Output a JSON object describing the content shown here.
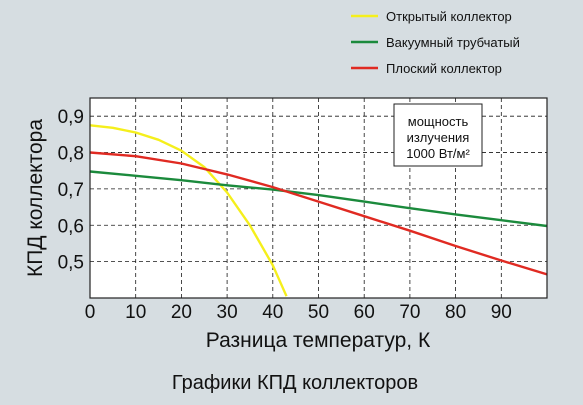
{
  "chart_data": {
    "type": "line",
    "title": "Графики КПД коллекторов",
    "xlabel": "Разница температур, К",
    "ylabel": "КПД коллектора",
    "xlim": [
      0,
      100
    ],
    "ylim": [
      0.4,
      0.95
    ],
    "x_ticks": [
      0,
      10,
      20,
      30,
      40,
      50,
      60,
      70,
      80,
      90
    ],
    "x_tick_labels": [
      "0",
      "10",
      "20",
      "30",
      "40",
      "50",
      "60",
      "70",
      "80",
      "90"
    ],
    "y_ticks": [
      0.5,
      0.6,
      0.7,
      0.8,
      0.9
    ],
    "y_tick_labels": [
      "0,5",
      "0,6",
      "0,7",
      "0,8",
      "0,9"
    ],
    "grid": true,
    "legend_position": "top-right",
    "annotation": [
      "мощность",
      "излучения",
      "1000 Вт/м²"
    ],
    "series": [
      {
        "name": "Открытый коллектор",
        "color": "#f5ef1c",
        "x": [
          0,
          5,
          10,
          15,
          20,
          25,
          30,
          35,
          40,
          43
        ],
        "y": [
          0.875,
          0.868,
          0.855,
          0.835,
          0.805,
          0.76,
          0.69,
          0.6,
          0.49,
          0.405
        ]
      },
      {
        "name": "Вакуумный трубчатый",
        "color": "#1b8a3c",
        "x": [
          0,
          10,
          20,
          30,
          40,
          50,
          60,
          70,
          80,
          90,
          100
        ],
        "y": [
          0.748,
          0.736,
          0.724,
          0.71,
          0.698,
          0.683,
          0.665,
          0.647,
          0.63,
          0.614,
          0.598
        ]
      },
      {
        "name": "Плоский коллектор",
        "color": "#e02a22",
        "x": [
          0,
          10,
          20,
          30,
          40,
          50,
          60,
          70,
          80,
          90,
          100
        ],
        "y": [
          0.8,
          0.79,
          0.77,
          0.74,
          0.705,
          0.665,
          0.625,
          0.585,
          0.543,
          0.503,
          0.465
        ]
      }
    ]
  }
}
